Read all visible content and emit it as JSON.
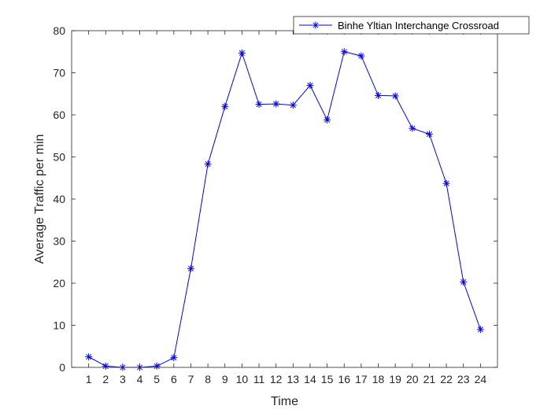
{
  "chart_data": {
    "type": "line",
    "title": "",
    "xlabel": "Time",
    "ylabel": "Average Traffic per min",
    "x": [
      1,
      2,
      3,
      4,
      5,
      6,
      7,
      8,
      9,
      10,
      11,
      12,
      13,
      14,
      15,
      16,
      17,
      18,
      19,
      20,
      21,
      22,
      23,
      24
    ],
    "xlim": [
      0,
      25
    ],
    "ylim": [
      0,
      80
    ],
    "xticks": [
      1,
      2,
      3,
      4,
      5,
      6,
      7,
      8,
      9,
      10,
      11,
      12,
      13,
      14,
      15,
      16,
      17,
      18,
      19,
      20,
      21,
      22,
      23,
      24
    ],
    "yticks": [
      0,
      10,
      20,
      30,
      40,
      50,
      60,
      70,
      80
    ],
    "grid": false,
    "legend_position": "top-right",
    "series": [
      {
        "name": "Binhe Yltian Interchange Crossroad",
        "color": "#0000ff",
        "marker": "asterisk",
        "values": [
          2.5,
          0.3,
          0,
          0,
          0.3,
          2.3,
          23.5,
          48.3,
          62,
          74.7,
          62.5,
          62.6,
          62.3,
          67,
          58.8,
          75,
          74,
          64.6,
          64.5,
          56.8,
          55.4,
          43.7,
          20.3,
          9
        ]
      }
    ]
  }
}
